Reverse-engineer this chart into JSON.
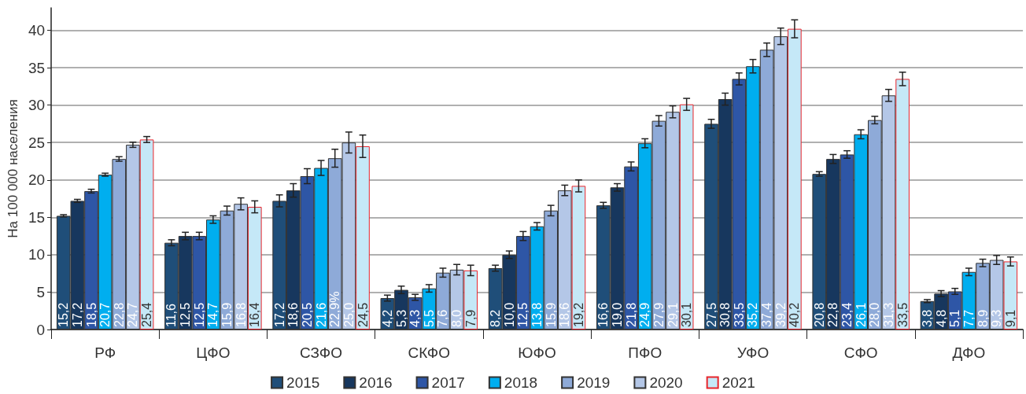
{
  "chart_data": {
    "type": "bar",
    "ylabel": "На 100 000 населения",
    "categories": [
      "РФ",
      "ЦФО",
      "СЗФО",
      "СКФО",
      "ЮФО",
      "ПФО",
      "УФО",
      "СФО",
      "ДФО"
    ],
    "ylim": [
      0,
      43
    ],
    "yticks": [
      0,
      5,
      10,
      15,
      20,
      25,
      30,
      35,
      40
    ],
    "grid": "y",
    "legend": "bottom",
    "series": [
      {
        "name": "2015",
        "color": "#1f4e79",
        "values": [
          15.2,
          11.6,
          17.2,
          4.2,
          8.2,
          16.6,
          27.5,
          20.8,
          3.8
        ],
        "errors": [
          0.15,
          0.4,
          0.8,
          0.4,
          0.4,
          0.4,
          0.6,
          0.3,
          0.2
        ],
        "value_labels": [
          "15,2",
          "11,6",
          "17,2",
          "4,2",
          "8,2",
          "16,6",
          "27,5",
          "20,8",
          "3,8"
        ]
      },
      {
        "name": "2016",
        "color": "#17375e",
        "values": [
          17.2,
          12.5,
          18.6,
          5.3,
          10.0,
          19.0,
          30.8,
          22.8,
          4.8
        ],
        "errors": [
          0.2,
          0.5,
          0.9,
          0.5,
          0.5,
          0.5,
          0.8,
          0.6,
          0.4
        ],
        "value_labels": [
          "17,2",
          "12,5",
          "18,6",
          "5,3",
          "10,0",
          "19,0",
          "30,8",
          "22,8",
          "4,8"
        ]
      },
      {
        "name": "2017",
        "color": "#2e56a6",
        "values": [
          18.5,
          12.5,
          20.5,
          4.3,
          12.5,
          21.8,
          33.5,
          23.4,
          5.1
        ],
        "errors": [
          0.25,
          0.5,
          1.0,
          0.4,
          0.6,
          0.6,
          0.8,
          0.5,
          0.4
        ],
        "value_labels": [
          "18,5",
          "12,5",
          "20,5",
          "4,3",
          "12,5",
          "21,8",
          "33,5",
          "23,4",
          "5,1"
        ]
      },
      {
        "name": "2018",
        "color": "#00aeef",
        "values": [
          20.7,
          14.7,
          21.6,
          5.5,
          13.8,
          24.9,
          35.2,
          26.1,
          7.7
        ],
        "errors": [
          0.2,
          0.5,
          1.0,
          0.5,
          0.5,
          0.6,
          0.9,
          0.6,
          0.5
        ],
        "value_labels": [
          "20,7",
          "14,7",
          "21,6",
          "5,5",
          "13,8",
          "24,9",
          "35,2",
          "26,1",
          "7,7"
        ]
      },
      {
        "name": "2019",
        "color": "#8eaad8",
        "values": [
          22.8,
          15.9,
          22.9,
          7.6,
          15.9,
          27.9,
          37.4,
          28.0,
          8.9
        ],
        "errors": [
          0.3,
          0.6,
          1.2,
          0.6,
          0.7,
          0.7,
          0.9,
          0.5,
          0.5
        ],
        "value_labels": [
          "22,8",
          "15,9",
          "22,9%",
          "7,6",
          "15,9",
          "27,9",
          "37,4",
          "28,0",
          "8,9"
        ]
      },
      {
        "name": "2020",
        "color": "#b4c7e7",
        "values": [
          24.7,
          16.8,
          25.0,
          8.0,
          18.6,
          29.1,
          39.2,
          31.3,
          9.3
        ],
        "errors": [
          0.35,
          0.8,
          1.4,
          0.7,
          0.7,
          0.8,
          1.1,
          0.8,
          0.6
        ],
        "value_labels": [
          "24,7",
          "16,8",
          "25,0",
          "8,0",
          "18,6",
          "29,1",
          "39,2",
          "31,3",
          "9,3"
        ]
      },
      {
        "name": "2021",
        "color": "#c5e8f7",
        "values": [
          25.4,
          16.4,
          24.5,
          7.9,
          19.2,
          30.1,
          40.2,
          33.5,
          9.1
        ],
        "errors": [
          0.4,
          0.8,
          1.5,
          0.7,
          0.8,
          0.8,
          1.2,
          0.9,
          0.6
        ],
        "value_labels": [
          "25,4",
          "16,4",
          "24,5",
          "7,9",
          "19,2",
          "30,1",
          "40,2",
          "33,5",
          "9,1"
        ]
      }
    ]
  }
}
